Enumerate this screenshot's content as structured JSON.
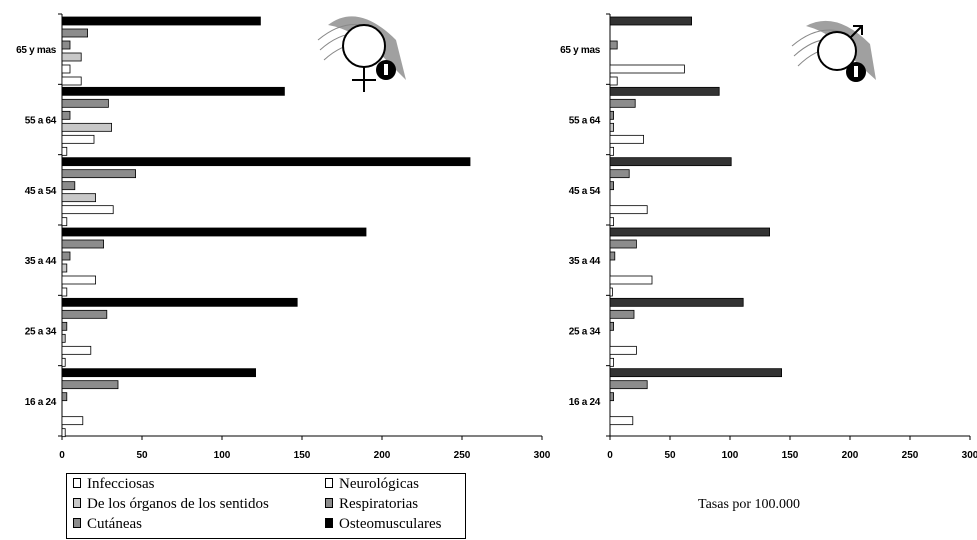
{
  "colors": {
    "infecciosas": "#ffffff",
    "neurologicas": "#ffffff",
    "sentidos": "#c8c8c8",
    "respiratorias": "#8c8c8c",
    "cutaneas": "#8c8c8c",
    "osteomusculares_female": "#000000",
    "osteomusculares_male": "#333333",
    "female_symbol_fill": "#a0a0a0",
    "male_symbol_fill": "#a0a0a0"
  },
  "icons": [
    "female-symbol-icon",
    "male-symbol-icon"
  ],
  "legend": {
    "items": [
      {
        "label": "Infecciosas",
        "key": "infecciosas"
      },
      {
        "label": "Neurológicas",
        "key": "neurologicas"
      },
      {
        "label": "De los órganos de los sentidos",
        "key": "sentidos"
      },
      {
        "label": "Respiratorias",
        "key": "respiratorias"
      },
      {
        "label": "Cutáneas",
        "key": "cutaneas"
      },
      {
        "label": "Osteomusculares",
        "key": "osteomusculares"
      }
    ]
  },
  "note": "Tasas por 100.000",
  "chart_data": [
    {
      "type": "bar",
      "orientation": "horizontal",
      "panel": "mujeres",
      "categories": [
        "65 y mas",
        "55 a 64",
        "45 a 54",
        "35 a 44",
        "25 a 34",
        "16 a 24"
      ],
      "xlim": [
        0,
        300
      ],
      "xticks": [
        "0",
        "50",
        "100",
        "150",
        "200",
        "250",
        "300"
      ],
      "grid": false,
      "series": [
        {
          "name": "Osteomusculares",
          "values": [
            124,
            139,
            255,
            190,
            147,
            121
          ]
        },
        {
          "name": "Cutáneas",
          "values": [
            16,
            29,
            46,
            26,
            28,
            35
          ]
        },
        {
          "name": "Respiratorias",
          "values": [
            5,
            5,
            8,
            5,
            3,
            3
          ]
        },
        {
          "name": "De los órganos de los sentidos",
          "values": [
            12,
            31,
            21,
            3,
            2,
            0
          ]
        },
        {
          "name": "Neurológicas",
          "values": [
            5,
            20,
            32,
            21,
            18,
            13
          ]
        },
        {
          "name": "Infecciosas",
          "values": [
            12,
            3,
            3,
            3,
            2,
            2
          ]
        }
      ]
    },
    {
      "type": "bar",
      "orientation": "horizontal",
      "panel": "hombres",
      "categories": [
        "65 y mas",
        "55 a 64",
        "45 a 54",
        "35 a 44",
        "25 a 34",
        "16 a 24"
      ],
      "xlim": [
        0,
        300
      ],
      "xticks": [
        "0",
        "50",
        "100",
        "150",
        "200",
        "250",
        "300"
      ],
      "grid": false,
      "series": [
        {
          "name": "Osteomusculares",
          "values": [
            68,
            91,
            101,
            133,
            111,
            143
          ]
        },
        {
          "name": "Cutáneas",
          "values": [
            0,
            21,
            16,
            22,
            20,
            31
          ]
        },
        {
          "name": "Respiratorias",
          "values": [
            6,
            3,
            3,
            4,
            3,
            3
          ]
        },
        {
          "name": "De los órganos de los sentidos",
          "values": [
            0,
            3,
            0,
            0,
            0,
            0
          ]
        },
        {
          "name": "Neurológicas",
          "values": [
            62,
            28,
            31,
            35,
            22,
            19
          ]
        },
        {
          "name": "Infecciosas",
          "values": [
            6,
            3,
            3,
            2,
            3,
            0
          ]
        }
      ]
    }
  ]
}
